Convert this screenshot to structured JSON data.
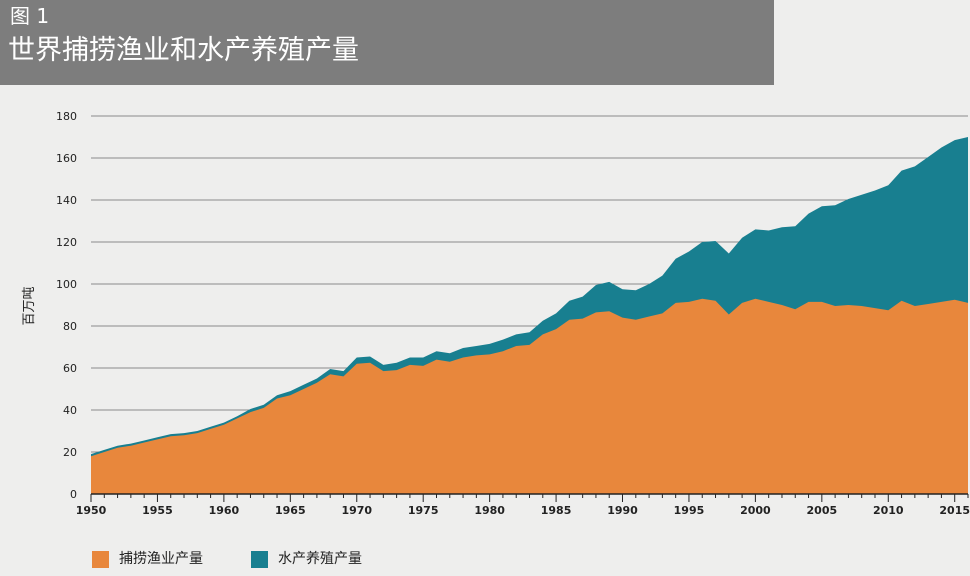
{
  "header": {
    "figure_label": "图 1",
    "title": "世界捕捞渔业和水产养殖产量"
  },
  "chart_data": {
    "type": "area",
    "stacked": true,
    "ylabel": "百万吨",
    "xlabel": "",
    "xlim": [
      1950,
      2016
    ],
    "ylim": [
      0,
      180
    ],
    "x_ticks": [
      "1950",
      "1955",
      "1960",
      "1965",
      "1970",
      "1975",
      "1980",
      "1985",
      "1990",
      "1995",
      "2000",
      "2005",
      "2010",
      "2015"
    ],
    "y_ticks": [
      "0",
      "20",
      "40",
      "60",
      "80",
      "100",
      "120",
      "140",
      "160",
      "180"
    ],
    "grid": true,
    "legend_position": "bottom-left",
    "x": [
      1950,
      1951,
      1952,
      1953,
      1954,
      1955,
      1956,
      1957,
      1958,
      1959,
      1960,
      1961,
      1962,
      1963,
      1964,
      1965,
      1966,
      1967,
      1968,
      1969,
      1970,
      1971,
      1972,
      1973,
      1974,
      1975,
      1976,
      1977,
      1978,
      1979,
      1980,
      1981,
      1982,
      1983,
      1984,
      1985,
      1986,
      1987,
      1988,
      1989,
      1990,
      1991,
      1992,
      1993,
      1994,
      1995,
      1996,
      1997,
      1998,
      1999,
      2000,
      2001,
      2002,
      2003,
      2004,
      2005,
      2006,
      2007,
      2008,
      2009,
      2010,
      2011,
      2012,
      2013,
      2014,
      2015,
      2016
    ],
    "series": [
      {
        "name": "捕捞渔业产量",
        "color": "#e8873c",
        "values": [
          18,
          20,
          22,
          23,
          24.5,
          26,
          27.5,
          28,
          29,
          31,
          33,
          36,
          39,
          41,
          45.5,
          47,
          50,
          53,
          57,
          56,
          62,
          62.5,
          58.5,
          59,
          61.5,
          61,
          64,
          63,
          65,
          66,
          66.5,
          68,
          70.5,
          71,
          76,
          78.5,
          83,
          83.5,
          86.5,
          87,
          84,
          83,
          84.5,
          86,
          91,
          91.5,
          93,
          92,
          85.5,
          91,
          93,
          91.5,
          90,
          88,
          91.5,
          91.5,
          89.5,
          90,
          89.5,
          88.5,
          87.5,
          92,
          89.5,
          90.5,
          91.5,
          92.5,
          91
        ]
      },
      {
        "name": "水产养殖产量",
        "color": "#187f90",
        "values": [
          1,
          1,
          1,
          1,
          1,
          1,
          1,
          1,
          1,
          1,
          1,
          1,
          1.5,
          1.5,
          1.5,
          2,
          2,
          2,
          2.5,
          2.5,
          3,
          3,
          3,
          3.5,
          3.5,
          4,
          4,
          4,
          4.5,
          4.5,
          5,
          5.5,
          5.5,
          6,
          6.5,
          7.5,
          9,
          10.5,
          13,
          14,
          13.5,
          14,
          15.5,
          18,
          21,
          24,
          27,
          28.5,
          29,
          31,
          33,
          34,
          37,
          39.5,
          42,
          45.5,
          48,
          50.5,
          53,
          56,
          59.5,
          62,
          66.5,
          70,
          73.5,
          76,
          79
        ]
      }
    ]
  },
  "legend": {
    "items": [
      {
        "label": "捕捞渔业产量",
        "color": "#e8873c"
      },
      {
        "label": "水产养殖产量",
        "color": "#187f90"
      }
    ]
  }
}
